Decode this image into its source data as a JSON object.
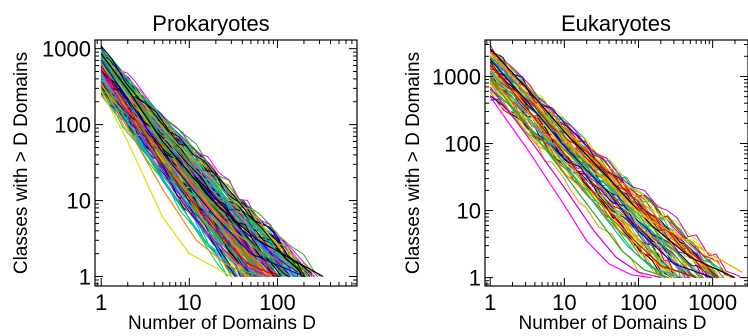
{
  "chart_data": [
    {
      "type": "line",
      "title": "Prokaryotes",
      "xlabel": "Number of Domains D",
      "ylabel": "Classes with > D Domains",
      "xscale": "log",
      "yscale": "log",
      "xlim": [
        0.85,
        800
      ],
      "ylim": [
        0.75,
        1300
      ],
      "x_ticks": [
        1,
        10,
        100
      ],
      "x_tick_labels": [
        "1",
        "10",
        "100"
      ],
      "y_ticks": [
        1,
        10,
        100,
        1000
      ],
      "y_tick_labels": [
        "1",
        "10",
        "100",
        "1000"
      ],
      "grid": false,
      "legend": "none",
      "n_series_approx": 200,
      "y_at_D1_range": [
        280,
        950
      ],
      "max_D_range": [
        25,
        330
      ],
      "series": [
        {
          "x": [
            1,
            2,
            5,
            20,
            55,
            140
          ],
          "y": [
            900,
            300,
            55,
            8,
            2.5,
            1
          ],
          "color": "#22aa22"
        },
        {
          "x": [
            1,
            2,
            5,
            20,
            60,
            330
          ],
          "y": [
            850,
            290,
            60,
            9,
            3,
            1
          ],
          "color": "#000000"
        },
        {
          "x": [
            1,
            2,
            5,
            20,
            50,
            200
          ],
          "y": [
            700,
            220,
            42,
            6,
            2,
            1
          ],
          "color": "#0000cc"
        },
        {
          "x": [
            1,
            2,
            5,
            20,
            45,
            100
          ],
          "y": [
            600,
            170,
            30,
            4,
            1.5,
            1
          ],
          "color": "#ee0000"
        },
        {
          "x": [
            1,
            2,
            5,
            15,
            35,
            80
          ],
          "y": [
            500,
            140,
            25,
            4,
            1.5,
            1
          ],
          "color": "#cc00cc"
        },
        {
          "x": [
            1,
            2,
            5,
            15,
            30,
            70
          ],
          "y": [
            420,
            110,
            18,
            3,
            1.3,
            1
          ],
          "color": "#00bbbb"
        },
        {
          "x": [
            1,
            2,
            5,
            12,
            25,
            50
          ],
          "y": [
            350,
            90,
            14,
            3,
            1.5,
            1
          ],
          "color": "#ff8800"
        },
        {
          "x": [
            1,
            2,
            5,
            10,
            20,
            30
          ],
          "y": [
            280,
            60,
            6,
            2,
            1.3,
            1
          ],
          "color": "#dddd00"
        }
      ]
    },
    {
      "type": "line",
      "title": "Eukaryotes",
      "xlabel": "Number of Domains D",
      "ylabel": "Classes with > D Domains",
      "xscale": "log",
      "yscale": "log",
      "xlim": [
        0.85,
        3000
      ],
      "ylim": [
        0.75,
        3500
      ],
      "x_ticks": [
        1,
        10,
        100,
        1000
      ],
      "x_tick_labels": [
        "1",
        "10",
        "100",
        "1000"
      ],
      "y_ticks": [
        1,
        10,
        100,
        1000
      ],
      "y_tick_labels": [
        "1",
        "10",
        "100",
        "1000"
      ],
      "grid": false,
      "legend": "none",
      "n_series_approx": 70,
      "y_at_D1_range": [
        500,
        2700
      ],
      "max_D_range": [
        100,
        3000
      ],
      "series": [
        {
          "x": [
            1,
            3,
            10,
            40,
            150,
            500,
            2000
          ],
          "y": [
            2600,
            700,
            150,
            30,
            6,
            2,
            1
          ],
          "color": "#000000"
        },
        {
          "x": [
            1,
            3,
            10,
            40,
            120,
            600,
            2500
          ],
          "y": [
            2300,
            580,
            120,
            25,
            8,
            3,
            1.2
          ],
          "color": "#ff9900"
        },
        {
          "x": [
            1,
            3,
            10,
            40,
            100,
            300,
            1000
          ],
          "y": [
            1800,
            450,
            90,
            18,
            5,
            1.6,
            1
          ],
          "color": "#0000cc"
        },
        {
          "x": [
            1,
            3,
            10,
            30,
            80,
            200,
            600
          ],
          "y": [
            1500,
            350,
            70,
            14,
            4,
            1.5,
            1
          ],
          "color": "#ee0000"
        },
        {
          "x": [
            1,
            3,
            10,
            30,
            70,
            150,
            400
          ],
          "y": [
            1200,
            280,
            50,
            10,
            3,
            1.4,
            1
          ],
          "color": "#00bbbb"
        },
        {
          "x": [
            1,
            3,
            10,
            30,
            60,
            120,
            250
          ],
          "y": [
            900,
            200,
            35,
            7,
            2.5,
            1.3,
            1
          ],
          "color": "#22aa22"
        },
        {
          "x": [
            1,
            3,
            10,
            25,
            50,
            100,
            200
          ],
          "y": [
            700,
            140,
            22,
            5,
            2,
            1.2,
            1
          ],
          "color": "#cc00cc"
        },
        {
          "x": [
            1,
            3,
            10,
            20,
            40,
            80,
            150
          ],
          "y": [
            500,
            90,
            12,
            3.5,
            1.6,
            1.1,
            1
          ],
          "color": "#ff00ff"
        }
      ]
    }
  ]
}
